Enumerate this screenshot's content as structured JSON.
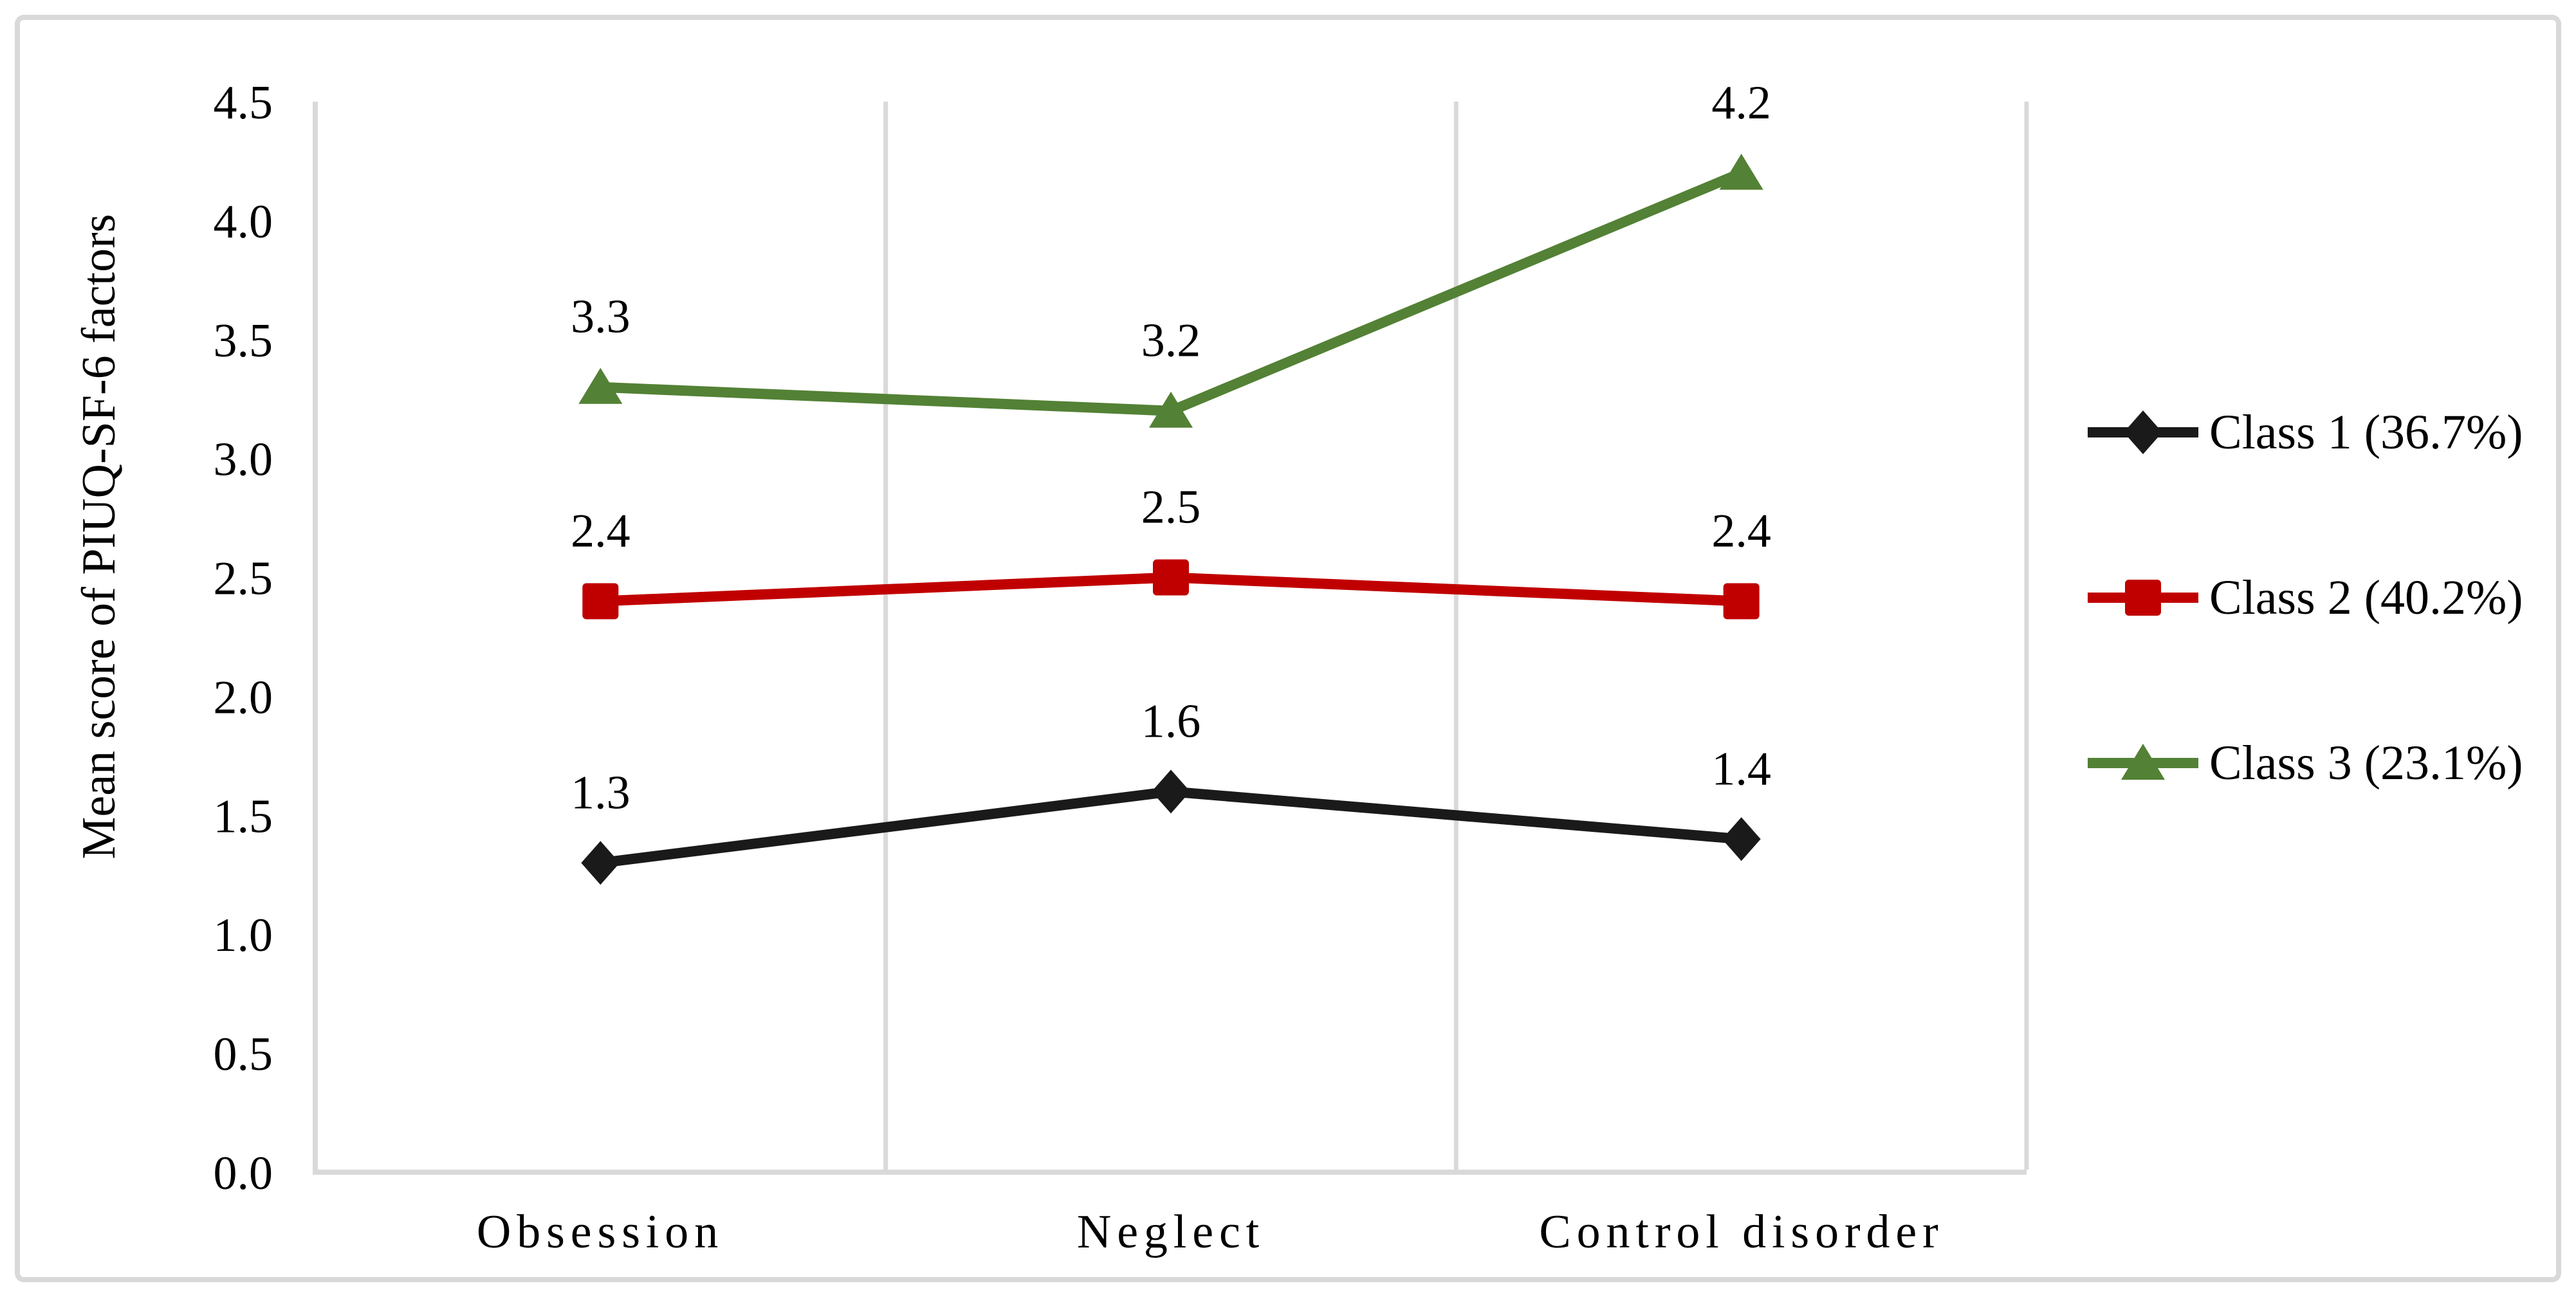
{
  "figure": {
    "background_color": "#ffffff",
    "border_color": "#d9d9d9"
  },
  "chart_data": {
    "type": "line",
    "title": "",
    "xlabel": "",
    "ylabel": "Mean score of PIUQ-SF-6 factors",
    "categories": [
      "Obsession",
      "Neglect",
      "Control disorder"
    ],
    "series": [
      {
        "name": "Class 1 (36.7%)",
        "marker": "diamond",
        "color": "#1a1a1a",
        "values": [
          1.3,
          1.6,
          1.4
        ],
        "labels": [
          "1.3",
          "1.6",
          "1.4"
        ]
      },
      {
        "name": "Class 2 (40.2%)",
        "marker": "square",
        "color": "#c00000",
        "values": [
          2.4,
          2.5,
          2.4
        ],
        "labels": [
          "2.4",
          "2.5",
          "2.4"
        ]
      },
      {
        "name": "Class 3 (23.1%)",
        "marker": "triangle",
        "color": "#538135",
        "values": [
          3.3,
          3.2,
          4.2
        ],
        "labels": [
          "3.3",
          "3.2",
          "4.2"
        ]
      }
    ],
    "ylim": [
      0.0,
      4.5
    ],
    "y_tick_labels": [
      "0.0",
      "0.5",
      "1.0",
      "1.5",
      "2.0",
      "2.5",
      "3.0",
      "3.5",
      "4.0",
      "4.5"
    ],
    "grid": "vertical-only",
    "gridline_color": "#d9d9d9",
    "axis_line_color": "#d9d9d9",
    "text_color": "#000000",
    "data_labels_shown": true,
    "legend_position": "right"
  }
}
